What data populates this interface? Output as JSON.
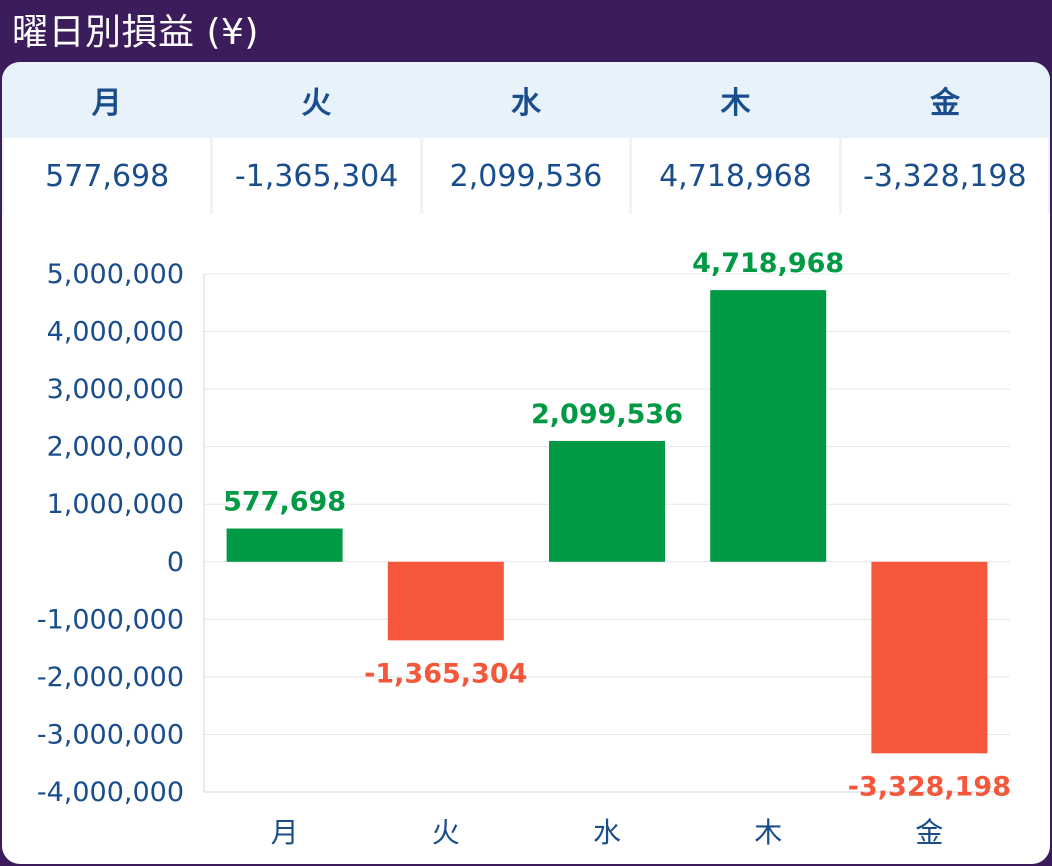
{
  "title": "曜日別損益 (¥)",
  "table": {
    "headers": [
      "月",
      "火",
      "水",
      "木",
      "金"
    ],
    "values": [
      "577,698",
      "-1,365,304",
      "2,099,536",
      "4,718,968",
      "-3,328,198"
    ]
  },
  "colors": {
    "positive": "#009944",
    "negative": "#f5573b",
    "axis_text": "#1a4d8c",
    "title_bar": "#3b1d5c"
  },
  "chart_data": {
    "type": "bar",
    "categories": [
      "月",
      "火",
      "水",
      "木",
      "金"
    ],
    "values": [
      577698,
      -1365304,
      2099536,
      4718968,
      -3328198
    ],
    "value_labels": [
      "577,698",
      "-1,365,304",
      "2,099,536",
      "4,718,968",
      "-3,328,198"
    ],
    "ylim": [
      -4000000,
      5000000
    ],
    "yticks": [
      5000000,
      4000000,
      3000000,
      2000000,
      1000000,
      0,
      -1000000,
      -2000000,
      -3000000,
      -4000000
    ],
    "ytick_labels": [
      "5,000,000",
      "4,000,000",
      "3,000,000",
      "2,000,000",
      "1,000,000",
      "0",
      "-1,000,000",
      "-2,000,000",
      "-3,000,000",
      "-4,000,000"
    ],
    "grid": true,
    "xlabel": "",
    "ylabel": ""
  }
}
